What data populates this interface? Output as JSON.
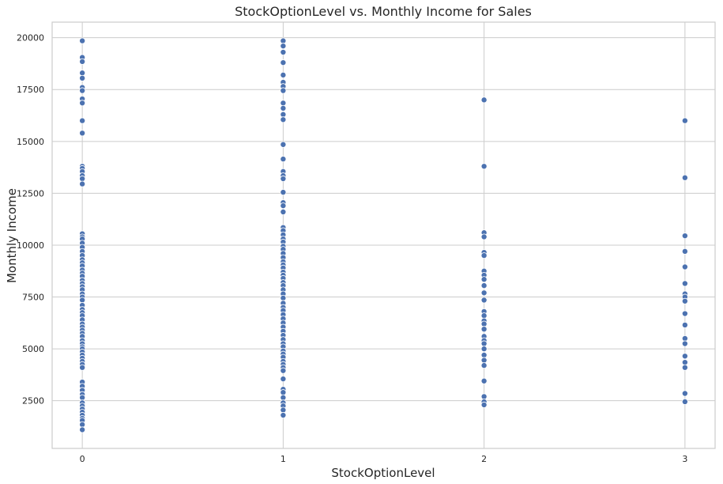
{
  "chart_data": {
    "type": "scatter",
    "title": "StockOptionLevel vs. Monthly Income for Sales",
    "xlabel": "StockOptionLevel",
    "ylabel": "Monthly Income",
    "xlim": [
      -0.15,
      3.15
    ],
    "ylim": [
      200,
      20750
    ],
    "x_ticks": [
      0,
      1,
      2,
      3
    ],
    "y_ticks": [
      2500,
      5000,
      7500,
      10000,
      12500,
      15000,
      17500,
      20000
    ],
    "grid": true,
    "marker_color": "#4c72b0",
    "series": [
      {
        "points": [
          [
            0,
            19850
          ],
          [
            0,
            19050
          ],
          [
            0,
            18850
          ],
          [
            0,
            18300
          ],
          [
            0,
            18050
          ],
          [
            0,
            17600
          ],
          [
            0,
            17450
          ],
          [
            0,
            17050
          ],
          [
            0,
            16850
          ],
          [
            0,
            16000
          ],
          [
            0,
            15400
          ],
          [
            0,
            13800
          ],
          [
            0,
            13700
          ],
          [
            0,
            13550
          ],
          [
            0,
            13350
          ],
          [
            0,
            13200
          ],
          [
            0,
            12950
          ],
          [
            0,
            10550
          ],
          [
            0,
            10400
          ],
          [
            0,
            10300
          ],
          [
            0,
            10100
          ],
          [
            0,
            9900
          ],
          [
            0,
            9700
          ],
          [
            0,
            9500
          ],
          [
            0,
            9300
          ],
          [
            0,
            9150
          ],
          [
            0,
            9000
          ],
          [
            0,
            8800
          ],
          [
            0,
            8650
          ],
          [
            0,
            8500
          ],
          [
            0,
            8300
          ],
          [
            0,
            8150
          ],
          [
            0,
            8000
          ],
          [
            0,
            7850
          ],
          [
            0,
            7650
          ],
          [
            0,
            7500
          ],
          [
            0,
            7350
          ],
          [
            0,
            7100
          ],
          [
            0,
            6900
          ],
          [
            0,
            6750
          ],
          [
            0,
            6600
          ],
          [
            0,
            6400
          ],
          [
            0,
            6200
          ],
          [
            0,
            6050
          ],
          [
            0,
            5900
          ],
          [
            0,
            5750
          ],
          [
            0,
            5600
          ],
          [
            0,
            5400
          ],
          [
            0,
            5250
          ],
          [
            0,
            5100
          ],
          [
            0,
            5000
          ],
          [
            0,
            4850
          ],
          [
            0,
            4700
          ],
          [
            0,
            4550
          ],
          [
            0,
            4400
          ],
          [
            0,
            4250
          ],
          [
            0,
            4100
          ],
          [
            0,
            3400
          ],
          [
            0,
            3200
          ],
          [
            0,
            3000
          ],
          [
            0,
            2800
          ],
          [
            0,
            2650
          ],
          [
            0,
            2400
          ],
          [
            0,
            2250
          ],
          [
            0,
            2100
          ],
          [
            0,
            1950
          ],
          [
            0,
            1800
          ],
          [
            0,
            1650
          ],
          [
            0,
            1550
          ],
          [
            0,
            1350
          ],
          [
            0,
            1100
          ],
          [
            1,
            19850
          ],
          [
            1,
            19600
          ],
          [
            1,
            19300
          ],
          [
            1,
            18800
          ],
          [
            1,
            18200
          ],
          [
            1,
            17850
          ],
          [
            1,
            17650
          ],
          [
            1,
            17450
          ],
          [
            1,
            16850
          ],
          [
            1,
            16600
          ],
          [
            1,
            16300
          ],
          [
            1,
            16050
          ],
          [
            1,
            14850
          ],
          [
            1,
            14150
          ],
          [
            1,
            13550
          ],
          [
            1,
            13350
          ],
          [
            1,
            13200
          ],
          [
            1,
            12550
          ],
          [
            1,
            12050
          ],
          [
            1,
            11900
          ],
          [
            1,
            11600
          ],
          [
            1,
            10850
          ],
          [
            1,
            10700
          ],
          [
            1,
            10500
          ],
          [
            1,
            10300
          ],
          [
            1,
            10150
          ],
          [
            1,
            9950
          ],
          [
            1,
            9800
          ],
          [
            1,
            9600
          ],
          [
            1,
            9400
          ],
          [
            1,
            9200
          ],
          [
            1,
            9050
          ],
          [
            1,
            8900
          ],
          [
            1,
            8700
          ],
          [
            1,
            8550
          ],
          [
            1,
            8400
          ],
          [
            1,
            8200
          ],
          [
            1,
            8050
          ],
          [
            1,
            7850
          ],
          [
            1,
            7650
          ],
          [
            1,
            7450
          ],
          [
            1,
            7200
          ],
          [
            1,
            7000
          ],
          [
            1,
            6850
          ],
          [
            1,
            6650
          ],
          [
            1,
            6450
          ],
          [
            1,
            6250
          ],
          [
            1,
            6050
          ],
          [
            1,
            5850
          ],
          [
            1,
            5650
          ],
          [
            1,
            5450
          ],
          [
            1,
            5250
          ],
          [
            1,
            5100
          ],
          [
            1,
            4900
          ],
          [
            1,
            4750
          ],
          [
            1,
            4600
          ],
          [
            1,
            4400
          ],
          [
            1,
            4250
          ],
          [
            1,
            4100
          ],
          [
            1,
            3950
          ],
          [
            1,
            3550
          ],
          [
            1,
            3050
          ],
          [
            1,
            2900
          ],
          [
            1,
            2650
          ],
          [
            1,
            2400
          ],
          [
            1,
            2250
          ],
          [
            1,
            2050
          ],
          [
            1,
            1800
          ],
          [
            2,
            17000
          ],
          [
            2,
            13800
          ],
          [
            2,
            10600
          ],
          [
            2,
            10400
          ],
          [
            2,
            9650
          ],
          [
            2,
            9500
          ],
          [
            2,
            8750
          ],
          [
            2,
            8550
          ],
          [
            2,
            8350
          ],
          [
            2,
            8050
          ],
          [
            2,
            7700
          ],
          [
            2,
            7350
          ],
          [
            2,
            6800
          ],
          [
            2,
            6600
          ],
          [
            2,
            6350
          ],
          [
            2,
            6200
          ],
          [
            2,
            5950
          ],
          [
            2,
            5600
          ],
          [
            2,
            5400
          ],
          [
            2,
            5250
          ],
          [
            2,
            5000
          ],
          [
            2,
            4700
          ],
          [
            2,
            4450
          ],
          [
            2,
            4200
          ],
          [
            2,
            3450
          ],
          [
            2,
            2700
          ],
          [
            2,
            2450
          ],
          [
            2,
            2300
          ],
          [
            3,
            16000
          ],
          [
            3,
            13250
          ],
          [
            3,
            10450
          ],
          [
            3,
            9700
          ],
          [
            3,
            8950
          ],
          [
            3,
            8150
          ],
          [
            3,
            7650
          ],
          [
            3,
            7500
          ],
          [
            3,
            7300
          ],
          [
            3,
            6700
          ],
          [
            3,
            6150
          ],
          [
            3,
            5500
          ],
          [
            3,
            5250
          ],
          [
            3,
            4650
          ],
          [
            3,
            4350
          ],
          [
            3,
            4100
          ],
          [
            3,
            2850
          ],
          [
            3,
            2450
          ]
        ]
      }
    ]
  }
}
